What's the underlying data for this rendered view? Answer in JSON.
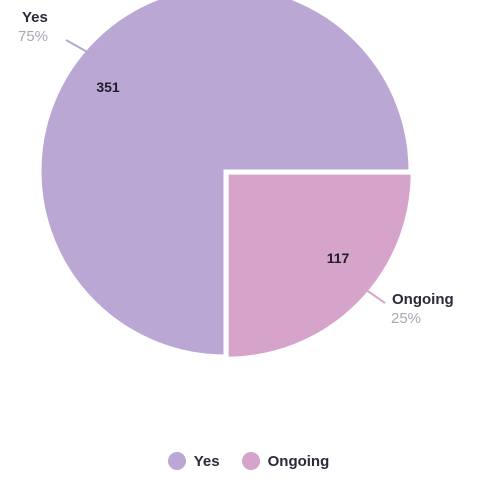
{
  "chart_data": {
    "type": "pie",
    "categories": [
      "Yes",
      "Ongoing"
    ],
    "values": [
      351,
      117
    ],
    "percentages": [
      "75%",
      "25%"
    ],
    "colors": [
      "#bba7d4",
      "#d6a3cb"
    ],
    "legend_position": "bottom"
  }
}
